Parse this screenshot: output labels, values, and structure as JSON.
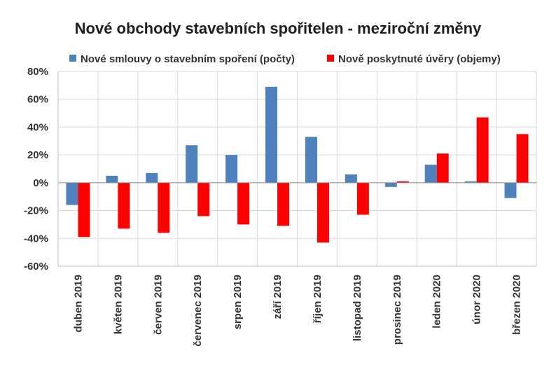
{
  "chart_data": {
    "type": "bar",
    "title": "Nové obchody stavebních spořitelen - meziroční změny",
    "categories": [
      "duben 2019",
      "květen 2019",
      "červen 2019",
      "červenec 2019",
      "srpen 2019",
      "září 2019",
      "říjen 2019",
      "listopad 2019",
      "prosinec 2019",
      "leden 2020",
      "únor 2020",
      "březen 2020"
    ],
    "series": [
      {
        "name": "Nové smlouvy o stavebním spoření (počty)",
        "color": "#4f81bd",
        "values": [
          -16,
          5,
          7,
          27,
          20,
          69,
          33,
          6,
          -3,
          13,
          1,
          -11
        ]
      },
      {
        "name": "Nově poskytnuté úvěry (objemy)",
        "color": "#ff0000",
        "values": [
          -39,
          -33,
          -36,
          -24,
          -30,
          -31,
          -43,
          -23,
          1,
          21,
          47,
          35
        ]
      }
    ],
    "ylim": [
      -60,
      80
    ],
    "yticks": [
      "-60%",
      "-40%",
      "-20%",
      "0%",
      "20%",
      "40%",
      "60%",
      "80%"
    ],
    "grid": true,
    "legend_position": "top"
  }
}
